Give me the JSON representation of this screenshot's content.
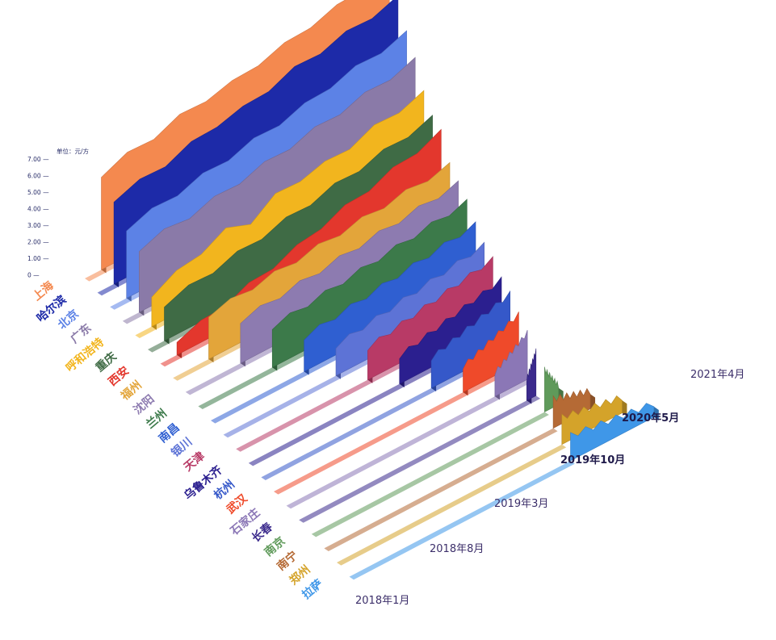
{
  "chart_data": {
    "type": "area",
    "ylabel": "单位：元/方",
    "y_ticks": [
      "7.00",
      "6.00",
      "5.00",
      "4.00",
      "3.00",
      "2.00",
      "1.00",
      "0"
    ],
    "ylim": [
      0,
      7
    ],
    "x_ticks": [
      "2018年1月",
      "2018年8月",
      "2019年3月",
      "2019年10月",
      "2020年5月",
      "2021年4月"
    ],
    "grid": false,
    "legend": "none",
    "series": [
      {
        "name": "上海",
        "color": "#f4894f",
        "values": [
          4.4,
          4.7,
          4.9,
          5.2,
          5.4,
          5.5,
          5.8,
          6.0,
          6.3,
          6.5,
          6.8,
          6.9
        ]
      },
      {
        "name": "哈尔滨",
        "color": "#1d2aa8",
        "values": [
          3.9,
          4.1,
          4.3,
          4.6,
          4.9,
          5.0,
          5.3,
          5.6,
          5.8,
          6.0,
          6.2,
          6.4
        ]
      },
      {
        "name": "北京",
        "color": "#5c82e6",
        "values": [
          3.2,
          3.4,
          3.6,
          3.8,
          4.0,
          4.2,
          4.4,
          4.6,
          4.9,
          5.1,
          5.3,
          5.5
        ]
      },
      {
        "name": "广东",
        "color": "#8a7aa8",
        "values": [
          2.9,
          3.1,
          3.2,
          3.4,
          3.6,
          3.8,
          4.0,
          4.2,
          4.4,
          4.6,
          4.8,
          5.0
        ]
      },
      {
        "name": "呼和浩特",
        "color": "#f2b51e",
        "values": [
          1.4,
          1.8,
          2.2,
          2.6,
          2.4,
          3.0,
          3.2,
          3.3,
          3.5,
          3.8,
          4.0,
          4.2
        ]
      },
      {
        "name": "重庆",
        "color": "#3f6b45",
        "values": [
          1.6,
          1.8,
          2.0,
          2.2,
          2.4,
          2.6,
          2.8,
          3.0,
          3.2,
          3.4,
          3.6,
          3.8
        ]
      },
      {
        "name": "西安",
        "color": "#e3372d",
        "values": [
          0.6,
          0.8,
          1.1,
          1.4,
          1.7,
          2.0,
          2.4,
          2.7,
          3.0,
          3.3,
          3.6,
          3.9
        ]
      },
      {
        "name": "福州",
        "color": "#e3a53a",
        "values": [
          2.0,
          2.1,
          2.2,
          2.3,
          2.4,
          2.5,
          2.6,
          2.7,
          2.8,
          2.9,
          3.0,
          3.1
        ]
      },
      {
        "name": "沈阳",
        "color": "#8d7bb0",
        "values": [
          1.9,
          2.0,
          2.1,
          2.2,
          2.3,
          2.4,
          2.5,
          2.6,
          2.7,
          2.8,
          2.9,
          3.0
        ]
      },
      {
        "name": "兰州",
        "color": "#3c7a4a",
        "values": [
          1.8,
          1.9,
          2.0,
          2.1,
          2.2,
          2.3,
          2.4,
          2.5,
          2.6,
          2.7,
          2.8,
          2.9
        ]
      },
      {
        "name": "南昌",
        "color": "#2f5fd1",
        "values": [
          1.5,
          1.6,
          1.7,
          1.8,
          1.9,
          2.0,
          2.1,
          2.2,
          2.3,
          2.4,
          2.5,
          2.6
        ]
      },
      {
        "name": "银川",
        "color": "#5d73d6",
        "values": [
          1.3,
          1.4,
          1.5,
          1.6,
          1.7,
          1.8,
          1.9,
          2.0,
          2.1,
          2.2,
          2.3,
          2.4
        ]
      },
      {
        "name": "天津",
        "color": "#b83a66",
        "values": [
          1.4,
          1.5,
          1.6,
          1.7,
          1.8,
          1.9,
          2.0,
          2.1,
          2.2,
          2.3,
          2.4,
          2.5
        ]
      },
      {
        "name": "乌鲁木齐",
        "color": "#2b1f8f",
        "values": [
          1.2,
          1.3,
          1.4,
          1.5,
          1.6,
          1.7,
          1.8,
          1.9,
          2.0,
          2.1,
          2.2,
          2.3
        ]
      },
      {
        "name": "杭州",
        "color": "#3558c9",
        "values": [
          1.3,
          1.4,
          1.5,
          1.6,
          1.7,
          1.8,
          1.9,
          2.0,
          2.1,
          2.2,
          2.3,
          2.4
        ]
      },
      {
        "name": "武汉",
        "color": "#ef4a2a",
        "values": [
          1.1,
          1.2,
          1.3,
          1.4,
          1.5,
          1.6,
          1.7,
          1.8,
          1.9,
          2.0,
          2.1,
          2.2
        ]
      },
      {
        "name": "石家庄",
        "color": "#8b77b6",
        "values": [
          1.0,
          1.1,
          1.2,
          1.3,
          1.4,
          1.5,
          1.6,
          1.7,
          1.8,
          1.9,
          2.0,
          2.1
        ]
      },
      {
        "name": "长春",
        "color": "#3b2a8c",
        "values": [
          0.9,
          1.0,
          1.1,
          1.2,
          1.3,
          1.4,
          1.5,
          1.6,
          1.7,
          1.8,
          1.9,
          2.0
        ]
      },
      {
        "name": "南京",
        "color": "#5f9a5a",
        "values": [
          0.8,
          0.9,
          1.0,
          1.1,
          1.2,
          1.3,
          1.4,
          1.5,
          1.6,
          1.7,
          1.8,
          1.9
        ]
      },
      {
        "name": "南宁",
        "color": "#b56a35",
        "values": [
          0.7,
          0.8,
          0.8,
          0.9,
          0.9,
          1.0,
          1.0,
          1.1,
          1.1,
          1.2,
          1.2,
          1.3
        ]
      },
      {
        "name": "郑州",
        "color": "#d4a32a",
        "values": [
          0.6,
          0.7,
          0.7,
          0.8,
          0.8,
          0.9,
          0.9,
          1.0,
          1.0,
          1.1,
          1.1,
          1.2
        ]
      },
      {
        "name": "拉萨",
        "color": "#3f97e8",
        "values": [
          0.5,
          0.6,
          0.6,
          0.7,
          0.7,
          0.8,
          0.8,
          0.9,
          0.9,
          1.0,
          1.0,
          1.1
        ]
      }
    ]
  }
}
